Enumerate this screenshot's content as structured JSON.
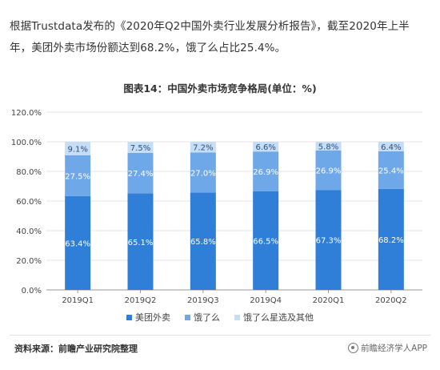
{
  "intro_text": "根据Trustdata发布的《2020年Q2中国外卖行业发展分析报告》，截至2020年上半年，美团外卖市场份额达到68.2%，饿了么占比25.4%。",
  "source_text": "资料来源：前瞻产业研究院整理",
  "brand_text": "前瞻经济学人APP",
  "colors": {
    "meituan": "#2f7ed8",
    "eleme": "#6fa8e8",
    "xingxuan": "#c6ddf6",
    "axis": "#999999",
    "grid": "#e6e6e6",
    "label": "#444444"
  },
  "chart_data": {
    "type": "bar",
    "stacked": true,
    "title": "图表14：中国外卖市场竞争格局(单位：%)",
    "categories": [
      "2019Q1",
      "2019Q2",
      "2019Q3",
      "2019Q4",
      "2020Q1",
      "2020Q2"
    ],
    "series": [
      {
        "name": "美团外卖",
        "values": [
          63.4,
          65.1,
          65.8,
          66.5,
          67.3,
          68.2
        ]
      },
      {
        "name": "饿了么",
        "values": [
          27.5,
          27.4,
          27.0,
          26.9,
          26.9,
          25.4
        ]
      },
      {
        "name": "饿了么星选及其他",
        "values": [
          9.1,
          7.5,
          7.2,
          6.6,
          5.8,
          6.4
        ]
      }
    ],
    "ylim": [
      0,
      120
    ],
    "yticks": [
      "0.0%",
      "20.0%",
      "40.0%",
      "60.0%",
      "80.0%",
      "100.0%",
      "120.0%"
    ],
    "grid": true,
    "legend": "bottom-center"
  }
}
